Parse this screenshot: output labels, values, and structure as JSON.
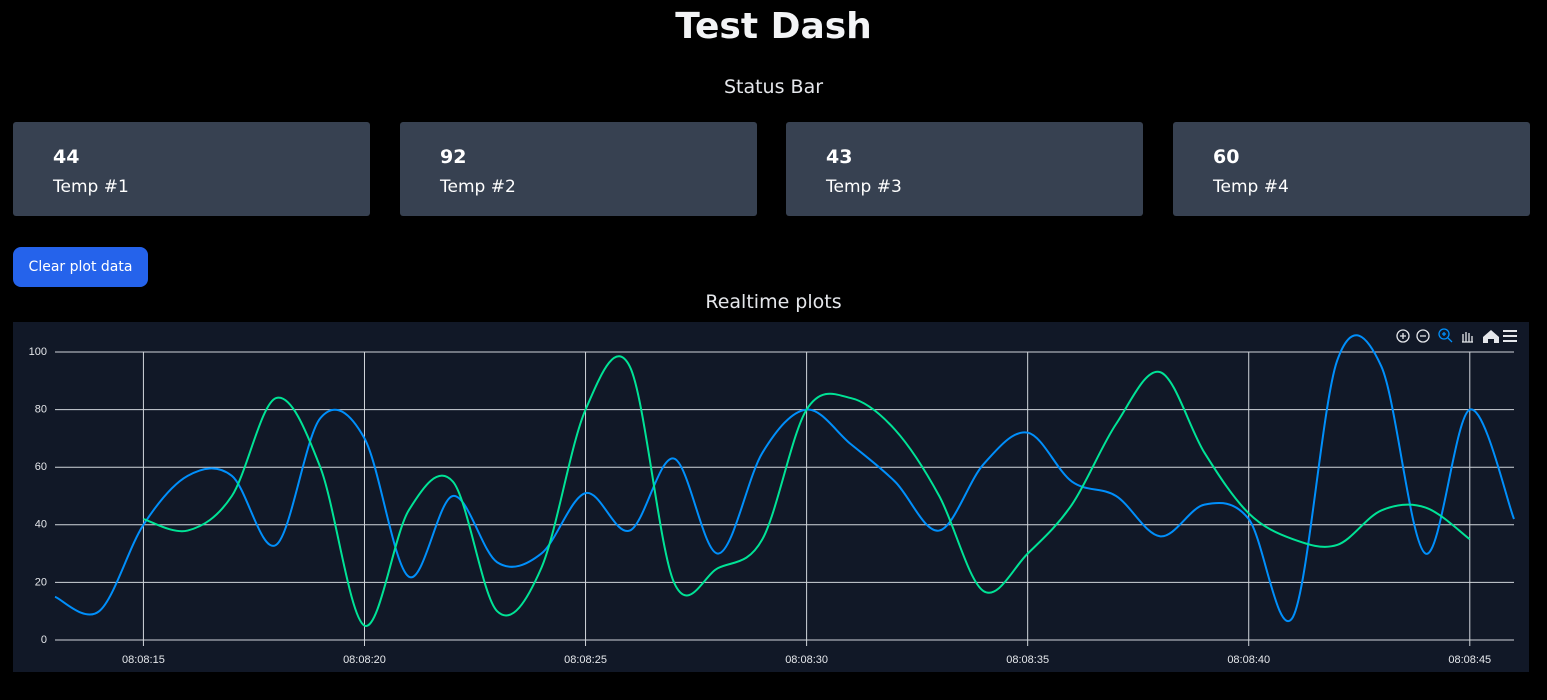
{
  "header": {
    "title": "Test Dash"
  },
  "status": {
    "title": "Status Bar",
    "cards": [
      {
        "value": 44,
        "label": "Temp #1"
      },
      {
        "value": 92,
        "label": "Temp #2"
      },
      {
        "value": 43,
        "label": "Temp #3"
      },
      {
        "value": 60,
        "label": "Temp #4"
      }
    ]
  },
  "button": {
    "label": "Clear plot data"
  },
  "plots": {
    "title": "Realtime plots"
  },
  "chart_data": {
    "type": "line",
    "x": [
      "08:08:13",
      "08:08:14",
      "08:08:15",
      "08:08:16",
      "08:08:17",
      "08:08:18",
      "08:08:19",
      "08:08:20",
      "08:08:21",
      "08:08:22",
      "08:08:23",
      "08:08:24",
      "08:08:25",
      "08:08:26",
      "08:08:27",
      "08:08:28",
      "08:08:29",
      "08:08:30",
      "08:08:31",
      "08:08:32",
      "08:08:33",
      "08:08:34",
      "08:08:35",
      "08:08:36",
      "08:08:37",
      "08:08:38",
      "08:08:39",
      "08:08:40",
      "08:08:41",
      "08:08:42",
      "08:08:43",
      "08:08:44",
      "08:08:45",
      "08:08:46"
    ],
    "series": [
      {
        "color": "#008ffb",
        "values": [
          15,
          10,
          40,
          57,
          57,
          33,
          77,
          70,
          22,
          50,
          27,
          30,
          51,
          38,
          63,
          30,
          65,
          80,
          68,
          55,
          38,
          61,
          72,
          55,
          50,
          36,
          47,
          42,
          8,
          97,
          95,
          30,
          80,
          42
        ]
      },
      {
        "color": "#00e396",
        "values": [
          null,
          null,
          42,
          38,
          50,
          84,
          60,
          5,
          45,
          55,
          10,
          25,
          80,
          95,
          20,
          25,
          35,
          80,
          84,
          73,
          50,
          17,
          30,
          47,
          75,
          93,
          65,
          44,
          35,
          33,
          45,
          46,
          35,
          null
        ]
      }
    ],
    "ylim": [
      0,
      100
    ],
    "yticks": [
      0,
      20,
      40,
      60,
      80,
      100
    ],
    "xticks": [
      "08:08:15",
      "08:08:20",
      "08:08:25",
      "08:08:30",
      "08:08:35",
      "08:08:40",
      "08:08:45"
    ],
    "grid": true
  }
}
